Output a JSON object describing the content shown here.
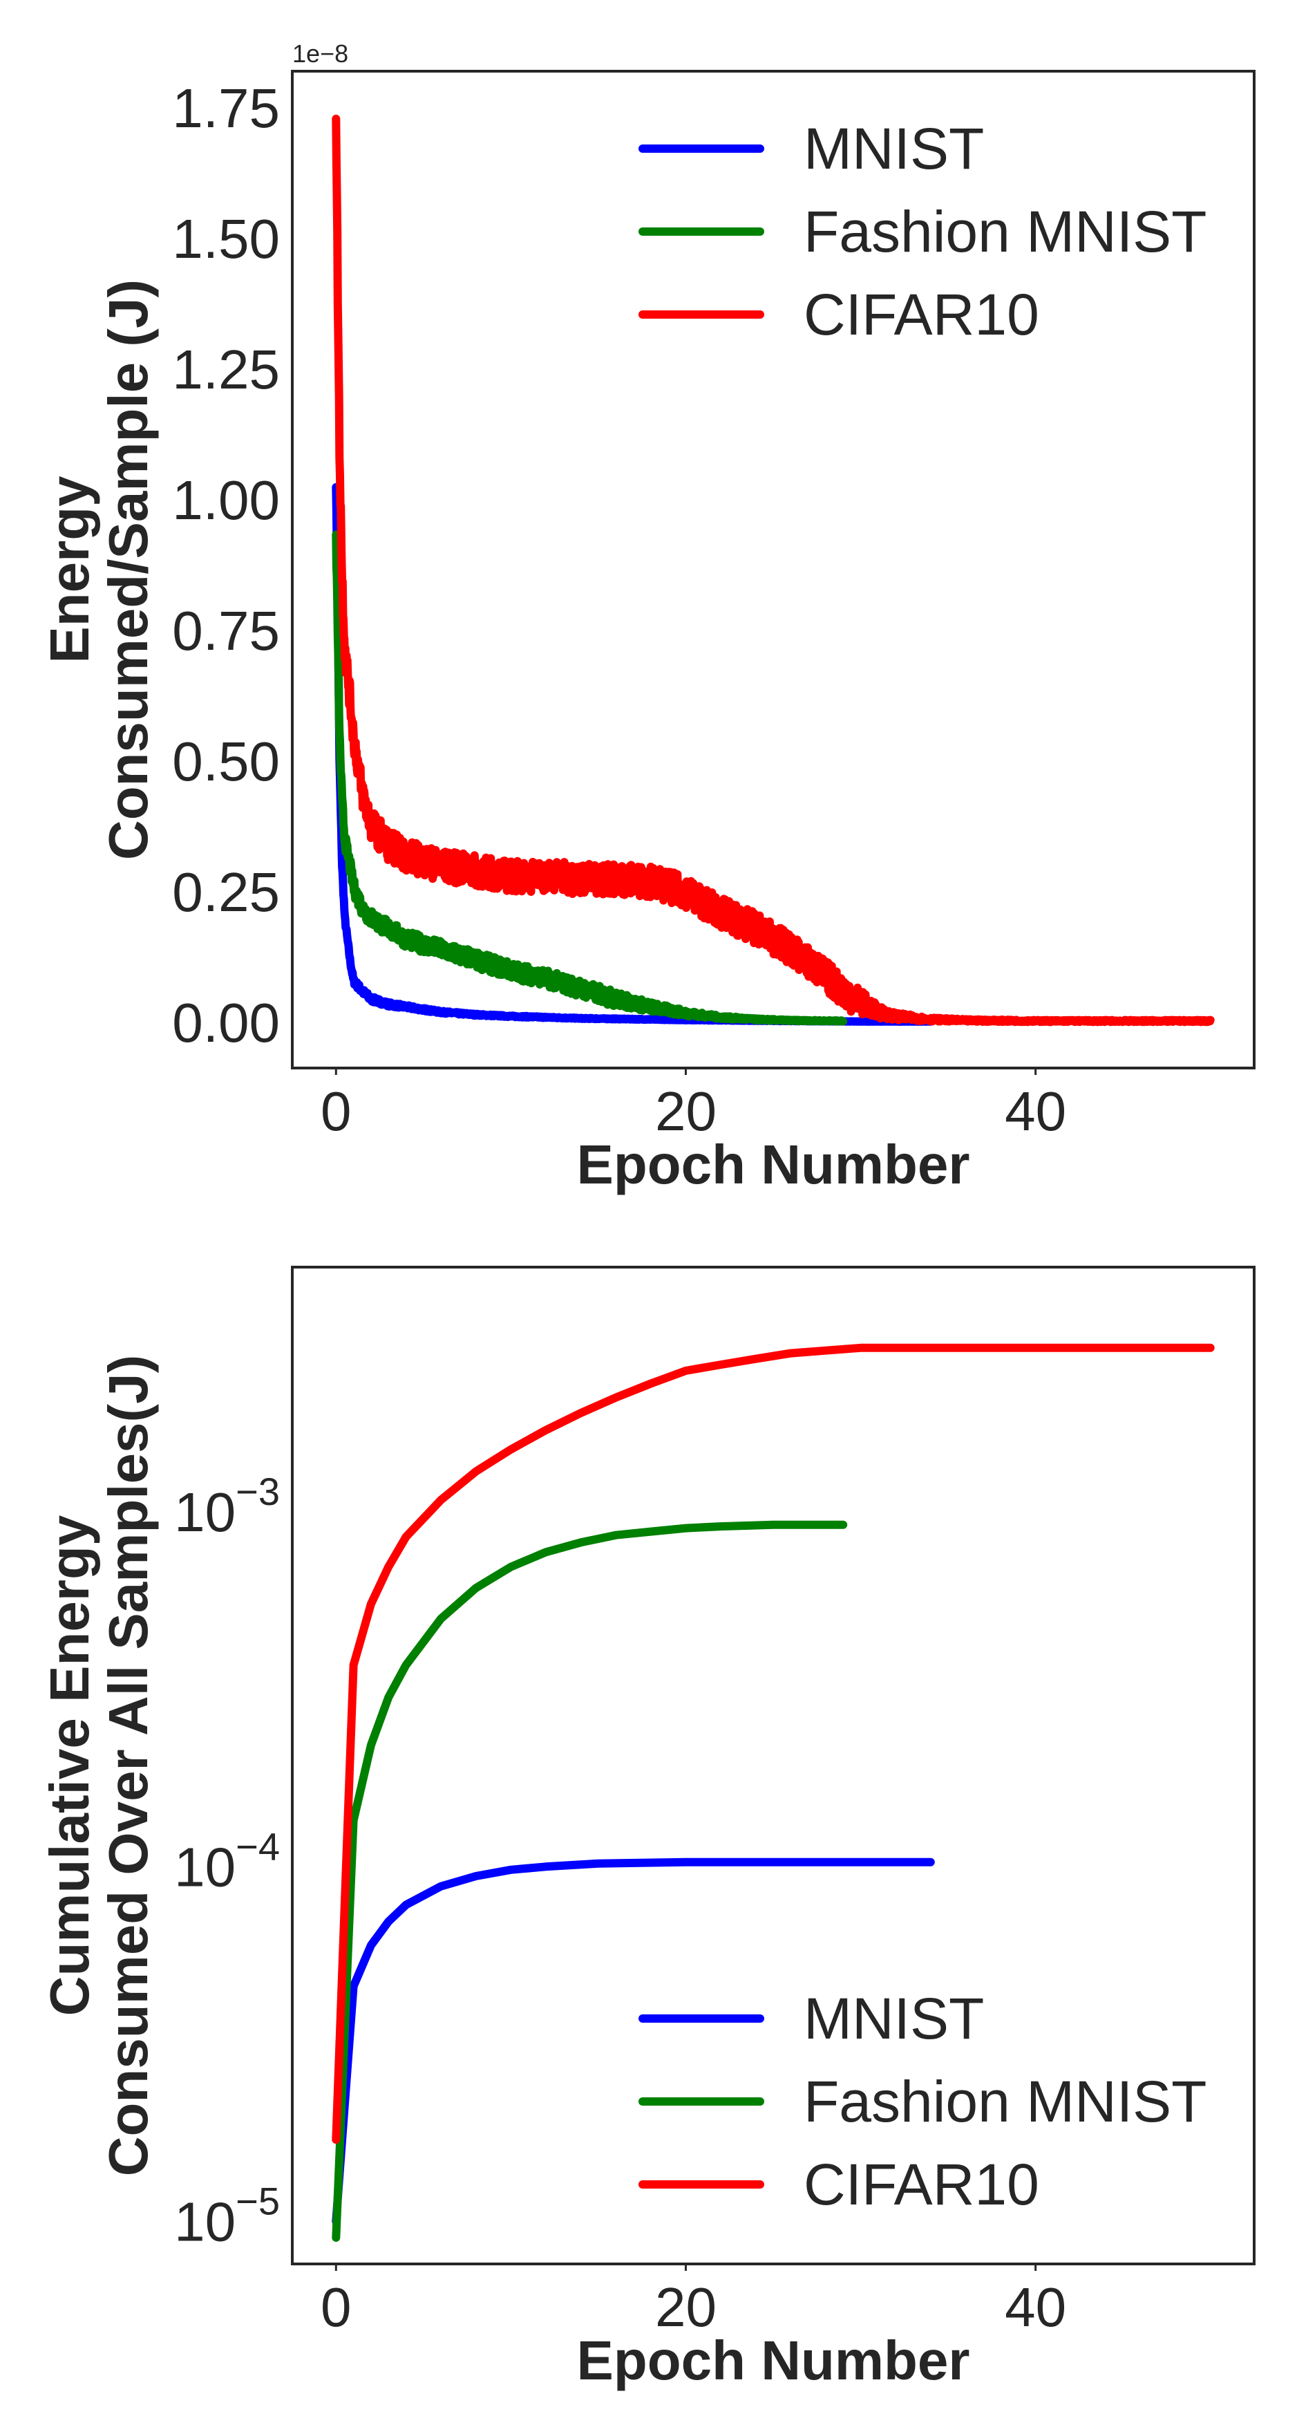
{
  "chart_data": [
    {
      "type": "line",
      "xlabel": "Epoch Number",
      "ylabel": [
        "Energy",
        "Consumed/Sample (J)"
      ],
      "y_offset_label": "1e−8",
      "xlim": [
        -2.5,
        52.5
      ],
      "ylim": [
        -0.087,
        1.82
      ],
      "xticks": [
        0,
        20,
        40
      ],
      "xtick_labels": [
        "0",
        "20",
        "40"
      ],
      "yticks": [
        0.0,
        0.25,
        0.5,
        0.75,
        1.0,
        1.25,
        1.5,
        1.75
      ],
      "ytick_labels": [
        "0.00",
        "0.25",
        "0.50",
        "0.75",
        "1.00",
        "1.25",
        "1.50",
        "1.75"
      ],
      "yscale": "linear",
      "grid": false,
      "legend_position": "upper-right",
      "series": [
        {
          "name": "MNIST",
          "color": "#0000ff",
          "noise": 0.006,
          "x": [
            0,
            0.1,
            0.2,
            0.35,
            0.5,
            0.8,
            1,
            1.5,
            2,
            3,
            4,
            5,
            6,
            8,
            10,
            14,
            20,
            26,
            30,
            34
          ],
          "y": [
            1.03,
            0.8,
            0.5,
            0.3,
            0.2,
            0.12,
            0.08,
            0.06,
            0.045,
            0.035,
            0.03,
            0.025,
            0.02,
            0.015,
            0.012,
            0.008,
            0.005,
            0.003,
            0.002,
            0.002
          ]
        },
        {
          "name": "Fashion MNIST",
          "color": "#008000",
          "noise": 0.016,
          "x": [
            0,
            0.1,
            0.2,
            0.35,
            0.5,
            0.8,
            1,
            1.5,
            2,
            3,
            4,
            6,
            8,
            10,
            12,
            14,
            16,
            18,
            20,
            22,
            24,
            26,
            29
          ],
          "y": [
            0.93,
            0.75,
            0.55,
            0.42,
            0.35,
            0.3,
            0.26,
            0.22,
            0.2,
            0.18,
            0.16,
            0.14,
            0.12,
            0.1,
            0.085,
            0.065,
            0.045,
            0.03,
            0.018,
            0.01,
            0.006,
            0.004,
            0.003
          ]
        },
        {
          "name": "CIFAR10",
          "color": "#ff0000",
          "noise": 0.03,
          "x": [
            0,
            0.1,
            0.2,
            0.35,
            0.5,
            0.8,
            1,
            1.5,
            2,
            3,
            4,
            6,
            8,
            10,
            12,
            14,
            16,
            18,
            20,
            22,
            24,
            26,
            28,
            29,
            30,
            31,
            32,
            34,
            36,
            40,
            45,
            50
          ],
          "y": [
            1.75,
            1.4,
            1.1,
            0.85,
            0.72,
            0.62,
            0.55,
            0.44,
            0.38,
            0.34,
            0.32,
            0.3,
            0.29,
            0.28,
            0.28,
            0.275,
            0.275,
            0.27,
            0.25,
            0.21,
            0.18,
            0.14,
            0.09,
            0.06,
            0.04,
            0.02,
            0.012,
            0.006,
            0.004,
            0.003,
            0.003,
            0.003
          ]
        }
      ]
    },
    {
      "type": "line",
      "xlabel": "Epoch Number",
      "ylabel": [
        "Cumulative Energy",
        "Consumed Over All Samples(J)"
      ],
      "xlim": [
        -2.5,
        52.5
      ],
      "ylim_log10": [
        -5.12,
        -2.31
      ],
      "xticks": [
        0,
        20,
        40
      ],
      "xtick_labels": [
        "0",
        "20",
        "40"
      ],
      "yticks": [
        1e-05,
        0.0001,
        0.001
      ],
      "ytick_labels": [
        "10",
        "10",
        "10"
      ],
      "ytick_exponents": [
        "−5",
        "−4",
        "−3"
      ],
      "yscale": "log",
      "grid": false,
      "legend_position": "lower-right",
      "series": [
        {
          "name": "MNIST",
          "color": "#0000ff",
          "x": [
            0,
            1,
            2,
            3,
            4,
            6,
            8,
            10,
            12,
            15,
            20,
            25,
            30,
            34
          ],
          "y": [
            1e-05,
            4.6e-05,
            6e-05,
            7e-05,
            7.8e-05,
            8.8e-05,
            9.4e-05,
            9.8e-05,
            0.0001,
            0.000102,
            0.000103,
            0.000103,
            0.000103,
            0.000103
          ]
        },
        {
          "name": "Fashion MNIST",
          "color": "#008000",
          "x": [
            0,
            1,
            2,
            3,
            4,
            6,
            8,
            10,
            12,
            14,
            16,
            18,
            20,
            22,
            25,
            29
          ],
          "y": [
            9e-06,
            0.000135,
            0.00022,
            0.0003,
            0.00037,
            0.0005,
            0.00061,
            0.0007,
            0.00077,
            0.00082,
            0.00086,
            0.00088,
            0.0009,
            0.00091,
            0.00092,
            0.00092
          ]
        },
        {
          "name": "CIFAR10",
          "color": "#ff0000",
          "x": [
            0,
            1,
            2,
            3,
            4,
            6,
            8,
            10,
            12,
            14,
            16,
            18,
            20,
            22,
            24,
            26,
            28,
            30,
            32,
            35,
            40,
            45,
            50
          ],
          "y": [
            1.7e-05,
            0.00037,
            0.00055,
            0.0007,
            0.00085,
            0.00108,
            0.0013,
            0.0015,
            0.0017,
            0.0019,
            0.0021,
            0.0023,
            0.0025,
            0.0026,
            0.0027,
            0.0028,
            0.00285,
            0.0029,
            0.0029,
            0.0029,
            0.0029,
            0.0029,
            0.0029
          ]
        }
      ]
    }
  ]
}
